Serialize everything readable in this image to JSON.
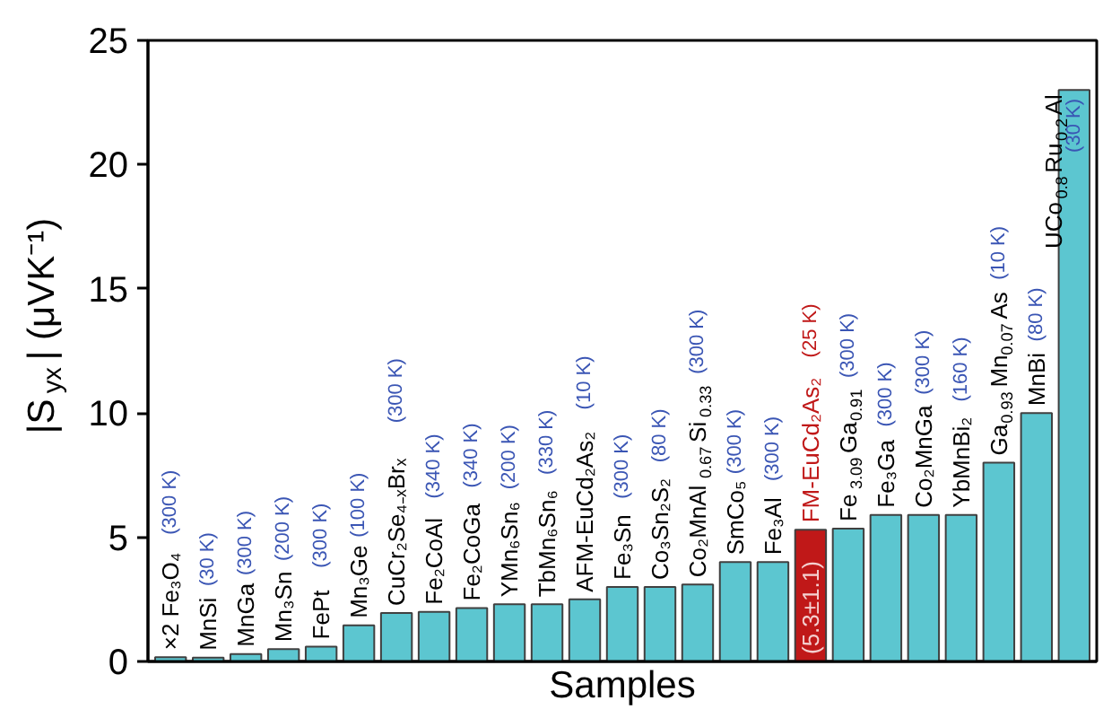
{
  "chart_data": {
    "type": "bar",
    "xlabel": "Samples",
    "ylabel": "|S$_{yx}$| (μVK⁻¹)",
    "categories": [
      "×2 Fe₃O₄",
      "MnSi",
      "MnGa",
      "Mn₃Sn",
      "FePt",
      "Mn₃Ge",
      "CuCr₂Se₄₋ₓBrₓ",
      "Fe₂CoAl",
      "Fe₂CoGa",
      "YMn₆Sn₆",
      "TbMn₆Sn₆",
      "AFM-EuCd₂As₂",
      "Fe₃Sn",
      "Co₃Sn₂S₂",
      "Co₂MnAl$_{0.67}$Si$_{0.33}$",
      "SmCo₅",
      "Fe₃Al",
      "FM-EuCd₂As₂",
      "Fe$_{3.09}$Ga$_{0.91}$",
      "Fe₃Ga",
      "Co₂MnGa",
      "YbMnBi₂",
      "Ga$_{0.93}$Mn$_{0.07}$As",
      "MnBi",
      "UCo$_{0.8}$Ru$_{0.2}$Al"
    ],
    "values": [
      0.17,
      0.15,
      0.3,
      0.5,
      0.6,
      1.45,
      1.95,
      2.0,
      2.15,
      2.3,
      2.3,
      2.5,
      3.0,
      3.0,
      3.1,
      4.0,
      4.0,
      5.3,
      5.35,
      5.9,
      5.9,
      5.9,
      8.0,
      10.0,
      23.0
    ],
    "colors": [
      "#5cc6d0",
      "#5cc6d0",
      "#5cc6d0",
      "#5cc6d0",
      "#5cc6d0",
      "#5cc6d0",
      "#5cc6d0",
      "#5cc6d0",
      "#5cc6d0",
      "#5cc6d0",
      "#5cc6d0",
      "#5cc6d0",
      "#5cc6d0",
      "#5cc6d0",
      "#5cc6d0",
      "#5cc6d0",
      "#5cc6d0",
      "#c01818",
      "#5cc6d0",
      "#5cc6d0",
      "#5cc6d0",
      "#5cc6d0",
      "#5cc6d0",
      "#5cc6d0",
      "#5cc6d0"
    ],
    "value_labels": [
      null,
      null,
      null,
      null,
      null,
      null,
      null,
      null,
      null,
      null,
      null,
      null,
      null,
      null,
      null,
      null,
      null,
      "(5.3±1.1)",
      null,
      null,
      null,
      null,
      null,
      null,
      null
    ],
    "annotations": [
      "(300 K)",
      "(30 K)",
      "(300 K)",
      "(200 K)",
      "(300 K)",
      "(100 K)",
      "(300 K)",
      "(340 K)",
      "(340 K)",
      "(200 K)",
      "(330 K)",
      "(10 K)",
      "(300 K)",
      "(80 K)",
      "(300 K)",
      "(300 K)",
      "(300 K)",
      "(25 K)",
      "(300 K)",
      "(300 K)",
      "(300 K)",
      "(160 K)",
      "(10 K)",
      "(80 K)",
      "(30 K)"
    ],
    "ylim": [
      0,
      25
    ],
    "yticks": [
      0,
      5,
      10,
      15,
      20,
      25
    ],
    "tick_labels": "y"
  }
}
